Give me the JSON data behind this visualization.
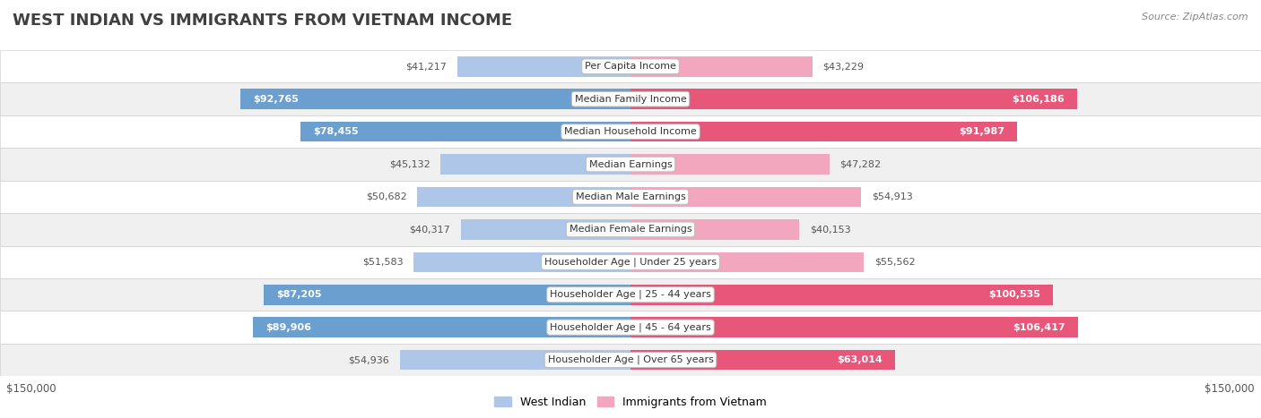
{
  "title": "WEST INDIAN VS IMMIGRANTS FROM VIETNAM INCOME",
  "source": "Source: ZipAtlas.com",
  "categories": [
    "Per Capita Income",
    "Median Family Income",
    "Median Household Income",
    "Median Earnings",
    "Median Male Earnings",
    "Median Female Earnings",
    "Householder Age | Under 25 years",
    "Householder Age | 25 - 44 years",
    "Householder Age | 45 - 64 years",
    "Householder Age | Over 65 years"
  ],
  "west_indian": [
    41217,
    92765,
    78455,
    45132,
    50682,
    40317,
    51583,
    87205,
    89906,
    54936
  ],
  "vietnam": [
    43229,
    106186,
    91987,
    47282,
    54913,
    40153,
    55562,
    100535,
    106417,
    63014
  ],
  "west_indian_labels": [
    "$41,217",
    "$92,765",
    "$78,455",
    "$45,132",
    "$50,682",
    "$40,317",
    "$51,583",
    "$87,205",
    "$89,906",
    "$54,936"
  ],
  "vietnam_labels": [
    "$43,229",
    "$106,186",
    "$91,987",
    "$47,282",
    "$54,913",
    "$40,153",
    "$55,562",
    "$100,535",
    "$106,417",
    "$63,014"
  ],
  "max_value": 150000,
  "color_west_indian_light": "#aec6e8",
  "color_west_indian_dark": "#6b9fcf",
  "color_vietnam_light": "#f2a7bf",
  "color_vietnam_dark": "#e8577a",
  "bg_color": "#ffffff",
  "row_bg_even": "#ffffff",
  "row_bg_odd": "#f0f0f0",
  "label_color_outside": "#555555",
  "label_color_inside": "#ffffff",
  "legend_west_indian": "West Indian",
  "legend_vietnam": "Immigrants from Vietnam",
  "xlabel_left": "$150,000",
  "xlabel_right": "$150,000",
  "large_threshold": 60000,
  "title_fontsize": 13,
  "source_fontsize": 8,
  "bar_label_fontsize": 8,
  "cat_label_fontsize": 8
}
